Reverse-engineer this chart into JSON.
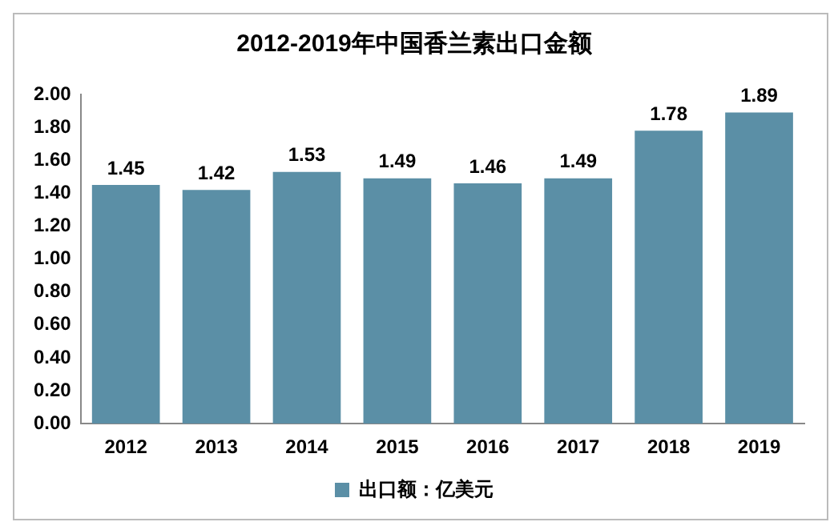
{
  "chart_data": {
    "type": "bar",
    "title": "2012-2019年中国香兰素出口金额",
    "categories": [
      "2012",
      "2013",
      "2014",
      "2015",
      "2016",
      "2017",
      "2018",
      "2019"
    ],
    "series": [
      {
        "name": "出口额：亿美元",
        "color": "#5b8fa6",
        "values": [
          1.45,
          1.42,
          1.53,
          1.49,
          1.46,
          1.49,
          1.78,
          1.89
        ]
      }
    ],
    "ylim": [
      0,
      2
    ],
    "yticks": [
      {
        "value": 0,
        "label": "0.00"
      },
      {
        "value": 0.2,
        "label": "0.20"
      },
      {
        "value": 0.4,
        "label": "0.40"
      },
      {
        "value": 0.6,
        "label": "0.60"
      },
      {
        "value": 0.8,
        "label": "0.80"
      },
      {
        "value": 1,
        "label": "1.00"
      },
      {
        "value": 1.2,
        "label": "1.20"
      },
      {
        "value": 1.4,
        "label": "1.40"
      },
      {
        "value": 1.6,
        "label": "1.60"
      },
      {
        "value": 1.8,
        "label": "1.80"
      },
      {
        "value": 2,
        "label": "2.00"
      }
    ],
    "grid": false,
    "legend": "bottom",
    "data_labels": true
  }
}
